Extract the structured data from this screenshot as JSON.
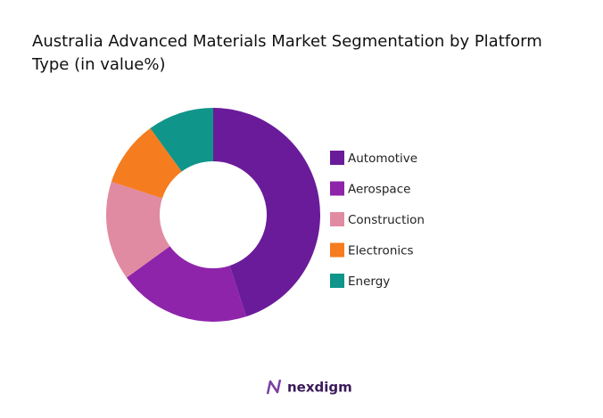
{
  "chart_data": {
    "type": "donut",
    "title": "Australia Advanced Materials Market Segmentation by Platform Type (in value%)",
    "categories": [
      "Automotive",
      "Aerospace",
      "Construction",
      "Electronics",
      "Energy"
    ],
    "values": [
      45,
      20,
      15,
      10,
      10
    ],
    "colors": [
      "#6a1b9a",
      "#8e24aa",
      "#e08ba2",
      "#f57c1f",
      "#0f958a"
    ],
    "legend": "right"
  },
  "brand": "nexdigm"
}
